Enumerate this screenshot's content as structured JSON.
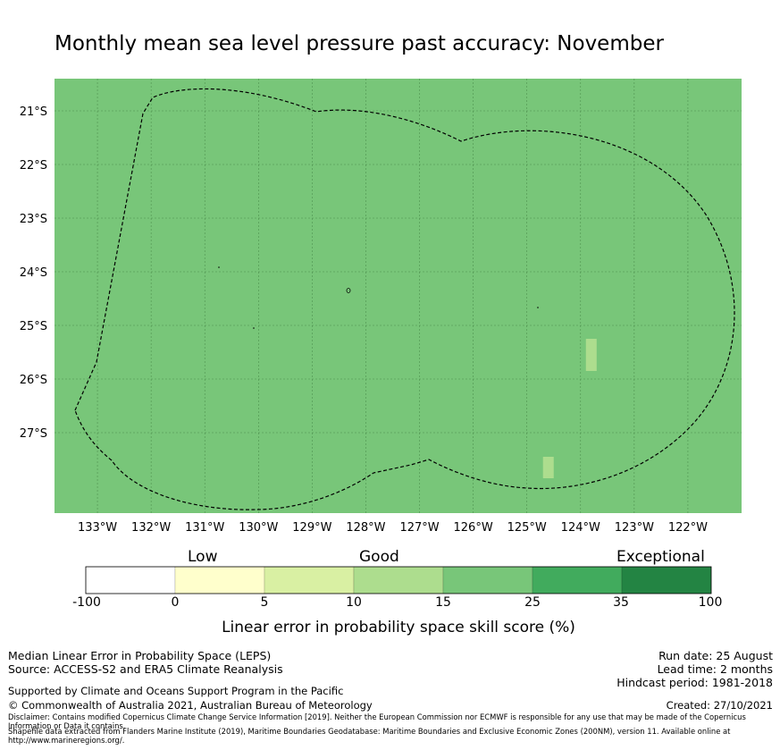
{
  "title": "Monthly mean sea level pressure past accuracy: November",
  "map": {
    "lon_ticks": [
      "133°W",
      "132°W",
      "131°W",
      "130°W",
      "129°W",
      "128°W",
      "127°W",
      "126°W",
      "125°W",
      "124°W",
      "123°W",
      "122°W"
    ],
    "lat_ticks": [
      "21°S",
      "22°S",
      "23°S",
      "24°S",
      "25°S",
      "26°S",
      "27°S"
    ],
    "lon_range": [
      -133.8,
      -121.0
    ],
    "lat_range": [
      -28.5,
      -20.4
    ],
    "base_color": "#78c679",
    "highlight_color": "#addd8e",
    "gridline_color": "#3d7a3d",
    "boundary_style": "dashed black",
    "highlight_cells": [
      {
        "lon": [
          -123.9,
          -123.7
        ],
        "lat": [
          -25.85,
          -25.25
        ]
      },
      {
        "lon": [
          -124.7,
          -124.5
        ],
        "lat": [
          -27.85,
          -27.45
        ]
      }
    ]
  },
  "colorbar": {
    "categories": [
      "Low",
      "Good",
      "Exceptional"
    ],
    "ticks": [
      "-100",
      "0",
      "5",
      "10",
      "15",
      "25",
      "35",
      "100"
    ],
    "colors": [
      "#ffffff",
      "#ffffcc",
      "#d9f0a3",
      "#addd8e",
      "#78c679",
      "#41ab5d",
      "#238443"
    ],
    "label": "Linear error in probability space skill score (%)"
  },
  "footer": {
    "left_line1": "Median Linear Error in Probability Space (LEPS)",
    "left_line2": "Source: ACCESS-S2 and ERA5 Climate Reanalysis",
    "right_line1": "Run date: 25 August",
    "right_line2": "Lead time: 2 months",
    "right_line3": "Hindcast period: 1981-2018",
    "support": "Supported by Climate and Oceans Support Program in the Pacific",
    "copyright": "© Commonwealth of Australia 2021, Australian Bureau of Meteorology",
    "created": "Created: 27/10/2021",
    "disclaimer": "Disclaimer: Contains modified Copernicus Climate Change Service Information [2019]. Neither the European Commission nor ECMWF is responsible for any use that may be made of the Copernicus Information or Data it contains.",
    "shapefile": "Shapefile data extracted from Flanders Marine Institute (2019), Maritime Boundaries Geodatabase: Maritime Boundaries and Exclusive Economic Zones (200NM), version 11. Available online at http://www.marineregions.org/."
  }
}
